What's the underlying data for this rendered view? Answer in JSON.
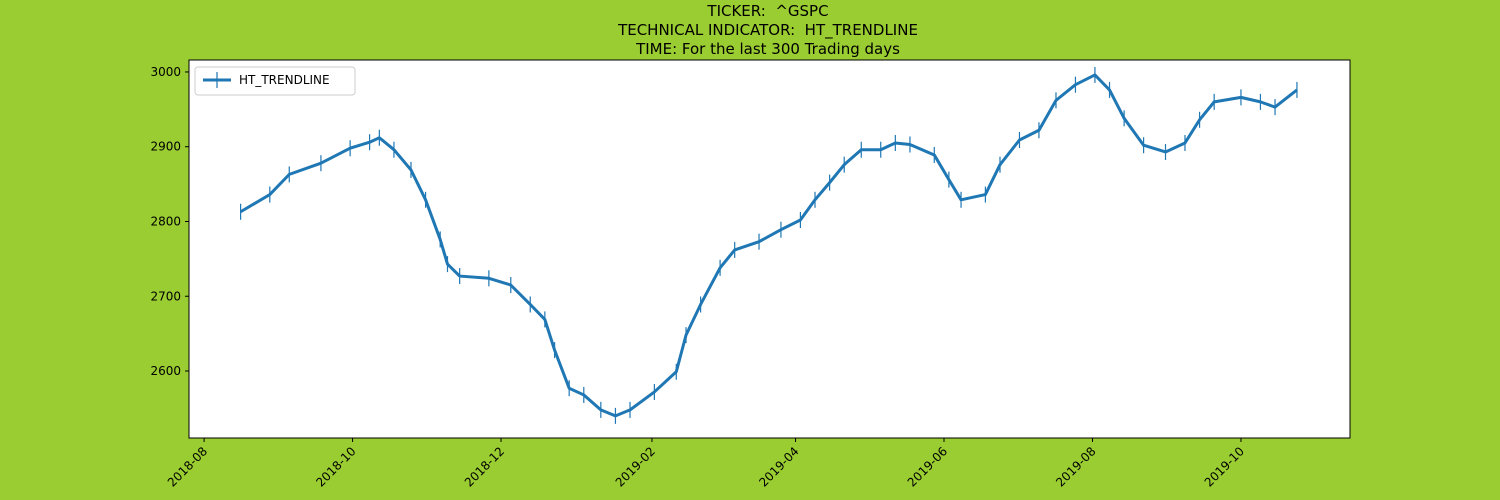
{
  "chart_data": {
    "type": "line",
    "title": [
      "TICKER:  ^GSPC",
      "TECHNICAL INDICATOR:  HT_TRENDLINE",
      "TIME: For the last 300 Trading days"
    ],
    "x": [
      17759,
      17771,
      17779,
      17792,
      17804,
      17812,
      17816,
      17822,
      17829,
      17835,
      17841,
      17844,
      17849,
      17861,
      17870,
      17878,
      17884,
      17888,
      17894,
      17900,
      17907,
      17913,
      17919,
      17929,
      17938,
      17942,
      17948,
      17956,
      17962,
      17972,
      17981,
      17989,
      17995,
      18001,
      18007,
      18014,
      18022,
      18028,
      18034,
      18044,
      18050,
      18055,
      18065,
      18071,
      18079,
      18087,
      18094,
      18102,
      18110,
      18116,
      18122,
      18130,
      18139,
      18147,
      18153,
      18159,
      18170,
      18178,
      18184,
      18193
    ],
    "series": [
      {
        "name": "HT_TRENDLINE",
        "color": "#1f77b4",
        "values": [
          2813,
          2836,
          2863,
          2878,
          2898,
          2906,
          2912,
          2896,
          2869,
          2829,
          2776,
          2743,
          2727,
          2724,
          2715,
          2689,
          2669,
          2628,
          2577,
          2568,
          2548,
          2540,
          2548,
          2572,
          2599,
          2648,
          2689,
          2738,
          2762,
          2773,
          2789,
          2802,
          2829,
          2852,
          2876,
          2896,
          2896,
          2905,
          2903,
          2889,
          2856,
          2829,
          2836,
          2876,
          2909,
          2922,
          2962,
          2983,
          2996,
          2976,
          2938,
          2902,
          2893,
          2905,
          2936,
          2960,
          2966,
          2960,
          2953,
          2976
        ]
      }
    ],
    "xlim": [
      17737.8,
      18214.8
    ],
    "xticks": [
      {
        "value": 17744,
        "label": "2018-08"
      },
      {
        "value": 17805,
        "label": "2018-10"
      },
      {
        "value": 17866,
        "label": "2018-12"
      },
      {
        "value": 17928,
        "label": "2019-02"
      },
      {
        "value": 17987,
        "label": "2019-04"
      },
      {
        "value": 18048,
        "label": "2019-06"
      },
      {
        "value": 18109,
        "label": "2019-08"
      },
      {
        "value": 18170,
        "label": "2019-10"
      }
    ],
    "ylim": [
      2510.4,
      3016
    ],
    "yticks": [
      2600,
      2700,
      2800,
      2900,
      3000
    ],
    "grid": false,
    "legend": "upper left"
  }
}
